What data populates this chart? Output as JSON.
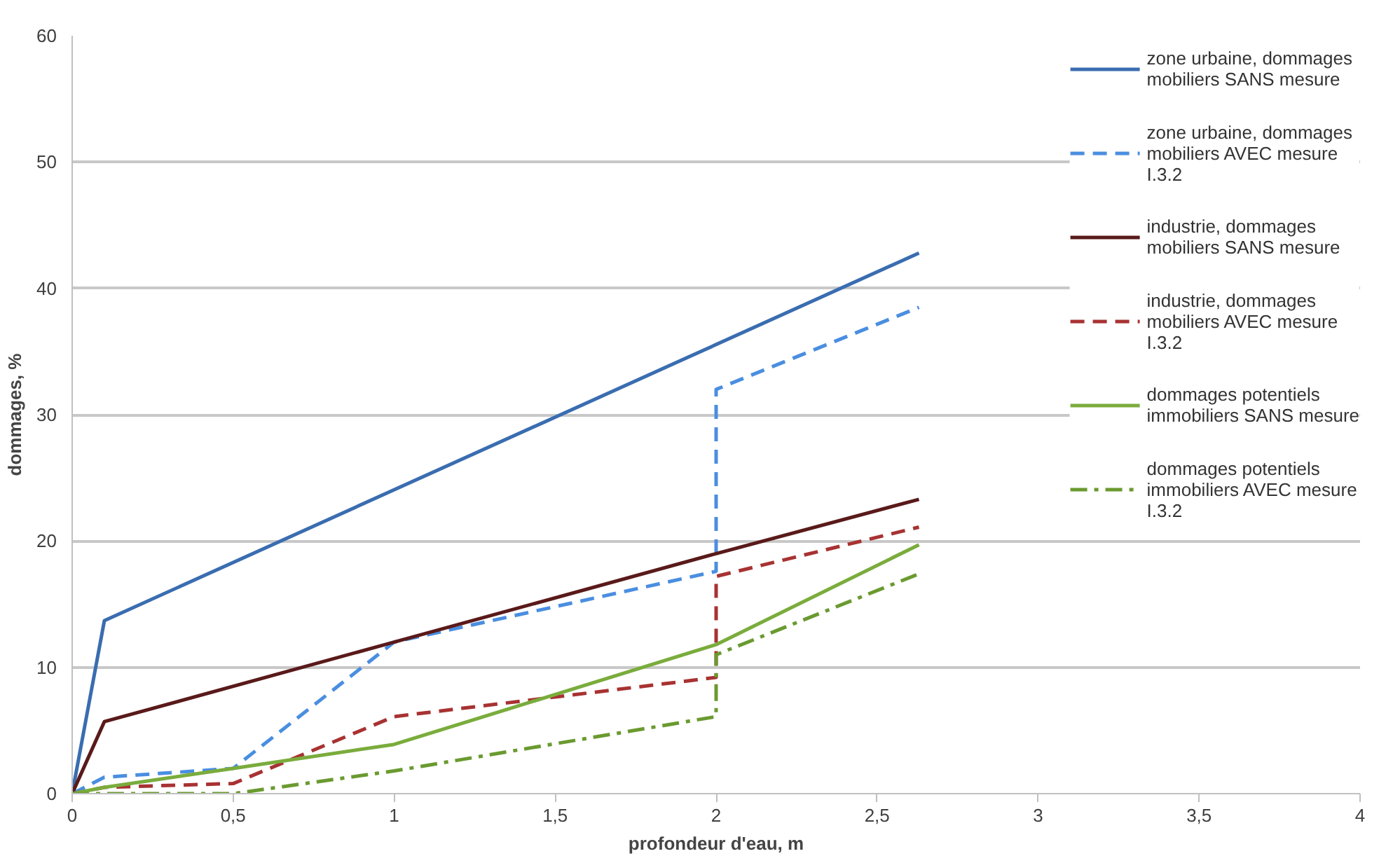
{
  "chart_data": {
    "type": "line",
    "xlabel": "profondeur d'eau, m",
    "ylabel": "dommages, %",
    "xlim": [
      0,
      4
    ],
    "ylim": [
      0,
      60
    ],
    "xticks": [
      0,
      {
        "value": 0.5,
        "label": "0,5"
      },
      1,
      {
        "value": 1.5,
        "label": "1,5"
      },
      2,
      {
        "value": 2.5,
        "label": "2,5"
      },
      3,
      {
        "value": 3.5,
        "label": "3,5"
      },
      4
    ],
    "yticks": [
      0,
      10,
      20,
      30,
      40,
      50,
      60
    ],
    "grid": "y",
    "legend": "right",
    "marker": "none",
    "series": [
      {
        "name": "zone urbaine, dommages mobiliers SANS mesure",
        "color": "#3a6db0",
        "line_style": "solid",
        "x": [
          0,
          0.1,
          2.63
        ],
        "values": [
          0,
          13.7,
          42.8
        ]
      },
      {
        "name": "zone urbaine, dommages mobiliers AVEC mesure I.3.2",
        "color": "#4a8ee0",
        "line_style": "dashed",
        "x": [
          0,
          0.1,
          0.5,
          1,
          2,
          2,
          2.63
        ],
        "values": [
          0,
          1.3,
          2,
          12,
          17.6,
          32,
          38.5
        ]
      },
      {
        "name": "industrie, dommages mobiliers SANS mesure",
        "color": "#5a1a1a",
        "line_style": "solid",
        "x": [
          0,
          0.1,
          1,
          2,
          2.63
        ],
        "values": [
          0,
          5.7,
          12,
          19,
          23.3
        ]
      },
      {
        "name": "industrie, dommages mobiliers AVEC mesure I.3.2",
        "color": "#a83232",
        "line_style": "dashed",
        "x": [
          0,
          0.1,
          0.5,
          1,
          2,
          2,
          2.63
        ],
        "values": [
          0,
          0.5,
          0.8,
          6.1,
          9.2,
          17.2,
          21.1
        ]
      },
      {
        "name": "dommages potentiels immobiliers SANS mesure",
        "color": "#7aac3c",
        "line_style": "solid",
        "x": [
          0,
          0.1,
          0.5,
          1,
          2,
          2.63
        ],
        "values": [
          0,
          0.5,
          2,
          3.9,
          11.8,
          19.7
        ]
      },
      {
        "name": "dommages potentiels immobiliers AVEC mesure I.3.2",
        "color": "#6a9a30",
        "line_style": "dashdot",
        "x": [
          0,
          0.5,
          1,
          2,
          2,
          2.63
        ],
        "values": [
          0,
          0,
          1.8,
          6.1,
          11,
          17.4
        ]
      }
    ]
  }
}
